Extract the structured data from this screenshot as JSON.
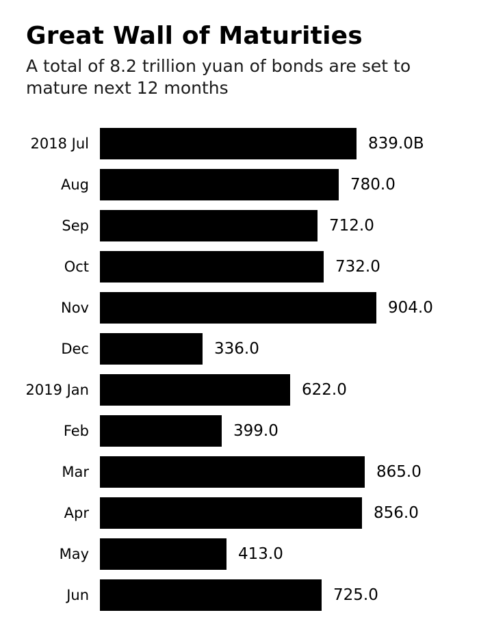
{
  "header": {
    "title": "Great Wall of Maturities",
    "subtitle": "A total of 8.2 trillion yuan of bonds are set to mature next 12 months"
  },
  "chart_data": {
    "type": "bar",
    "orientation": "horizontal",
    "title": "Great Wall of Maturities",
    "subtitle": "A total of 8.2 trillion yuan of bonds are set to mature next 12 months",
    "categories": [
      "2018 Jul",
      "Aug",
      "Sep",
      "Oct",
      "Nov",
      "Dec",
      "2019 Jan",
      "Feb",
      "Mar",
      "Apr",
      "May",
      "Jun"
    ],
    "values": [
      839.0,
      780.0,
      712.0,
      732.0,
      904.0,
      336.0,
      622.0,
      399.0,
      865.0,
      856.0,
      413.0,
      725.0
    ],
    "value_labels": [
      "839.0B",
      "780.0",
      "712.0",
      "732.0",
      "904.0",
      "336.0",
      "622.0",
      "399.0",
      "865.0",
      "856.0",
      "413.0",
      "725.0"
    ],
    "xlabel": "",
    "ylabel": "",
    "xlim": [
      0,
      904
    ],
    "grid": false,
    "legend": false,
    "value_labels_position": "right-of-bar",
    "bar_color": "#000000",
    "text_color": "#000000",
    "background_color": "#ffffff"
  }
}
